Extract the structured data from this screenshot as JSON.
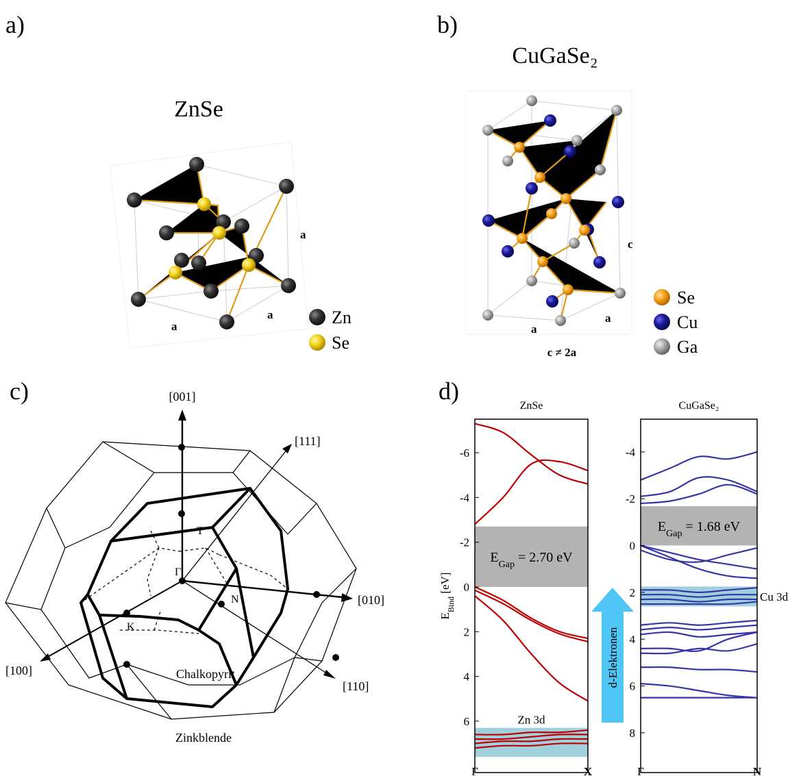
{
  "panels": {
    "a": {
      "label": "a)",
      "title": "ZnSe",
      "lattice_labels": [
        "a",
        "a",
        "a"
      ],
      "legend": [
        "Zn",
        "Se"
      ]
    },
    "b": {
      "label": "b)",
      "title": "CuGaSe₂",
      "lattice_labels": [
        "c",
        "a",
        "a"
      ],
      "relation": "c ≠ 2a",
      "legend": [
        "Se",
        "Cu",
        "Ga"
      ]
    },
    "c": {
      "label": "c)",
      "directions": [
        "[001]",
        "[111]",
        "[010]",
        "[110]",
        "[100]"
      ],
      "points": [
        "T",
        "Γ",
        "N",
        "K"
      ],
      "zones": [
        "Chalkopyrit",
        "Zinkblende"
      ]
    },
    "d": {
      "label": "d)",
      "arrow": "d-Elektronen"
    }
  },
  "chart_data": [
    {
      "type": "line",
      "title": "ZnSe",
      "ylabel": {
        "main": "E",
        "sub": "Bind",
        "rest": " [eV]"
      },
      "categories": [
        "Γ",
        null,
        null,
        null,
        "X"
      ],
      "ylim": [
        8.3,
        -7.5
      ],
      "yticks": [
        -6,
        -4,
        -2,
        0,
        2,
        4,
        6
      ],
      "color": "#c00000",
      "regions": [
        {
          "from": -2.7,
          "to": 0,
          "color": "#b3b3b3",
          "label": {
            "main": "E",
            "sub": "Gap",
            "rest": " = 2.70 eV"
          }
        },
        {
          "from": 6.3,
          "to": 7.6,
          "color": "#9fd0dc",
          "label": "Zn 3d"
        }
      ],
      "series": [
        {
          "values": [
            -7.3,
            -6.9,
            -5.9,
            -5.0,
            -4.6
          ]
        },
        {
          "values": [
            -2.8,
            -4.0,
            -5.5,
            -5.6,
            -5.2
          ]
        },
        {
          "values": [
            0.0,
            0.6,
            1.4,
            2.0,
            2.3
          ]
        },
        {
          "values": [
            0.15,
            0.75,
            1.5,
            2.1,
            2.45
          ]
        },
        {
          "values": [
            0.4,
            1.5,
            3.0,
            4.3,
            5.1
          ]
        },
        {
          "values": [
            6.6,
            6.6,
            6.5,
            6.5,
            6.4
          ]
        },
        {
          "values": [
            6.8,
            6.8,
            6.7,
            6.6,
            6.6
          ]
        },
        {
          "values": [
            7.0,
            6.9,
            6.9,
            6.8,
            6.8
          ]
        },
        {
          "values": [
            7.2,
            7.1,
            7.1,
            7.0,
            7.0
          ]
        }
      ]
    },
    {
      "type": "line",
      "title": "CuGaSe₂",
      "categories": [
        "Γ",
        null,
        null,
        null,
        "N"
      ],
      "ylim": [
        9.7,
        -5.4
      ],
      "yticks": [
        -4,
        -2,
        0,
        2,
        4,
        6,
        8
      ],
      "color": "#3535a8",
      "regions": [
        {
          "from": -1.68,
          "to": 0,
          "color": "#b3b3b3",
          "label": {
            "main": "E",
            "sub": "Gap",
            "rest": " = 1.68 eV"
          }
        },
        {
          "from": 1.75,
          "to": 2.6,
          "color": "#9fd0dc",
          "label": "Cu 3d"
        }
      ],
      "series": [
        {
          "values": [
            -2.8,
            -3.3,
            -3.8,
            -3.7,
            -4.0
          ]
        },
        {
          "values": [
            -2.1,
            -2.3,
            -2.9,
            -2.8,
            -2.3
          ]
        },
        {
          "values": [
            -1.8,
            -1.9,
            -2.2,
            -2.6,
            -2.2
          ]
        },
        {
          "values": [
            0.0,
            0.5,
            1.0,
            1.3,
            1.4
          ]
        },
        {
          "values": [
            0.0,
            0.3,
            0.6,
            0.8,
            1.0
          ]
        },
        {
          "values": [
            0.2,
            0.6,
            0.7,
            0.4,
            0.1
          ]
        },
        {
          "values": [
            1.9,
            1.9,
            2.0,
            1.9,
            1.8
          ]
        },
        {
          "values": [
            2.1,
            2.1,
            2.2,
            2.1,
            2.1
          ]
        },
        {
          "values": [
            2.3,
            2.3,
            2.4,
            2.3,
            2.3
          ]
        },
        {
          "values": [
            2.5,
            2.5,
            2.5,
            2.5,
            2.4
          ]
        },
        {
          "values": [
            3.4,
            3.3,
            3.4,
            3.3,
            3.2
          ]
        },
        {
          "values": [
            3.6,
            3.5,
            3.6,
            3.5,
            3.4
          ]
        },
        {
          "values": [
            3.8,
            3.7,
            3.9,
            3.8,
            3.7
          ]
        },
        {
          "values": [
            4.4,
            4.4,
            4.5,
            4.0,
            3.7
          ]
        },
        {
          "values": [
            4.6,
            4.6,
            4.4,
            4.5,
            4.2
          ]
        },
        {
          "values": [
            5.2,
            5.2,
            5.3,
            5.3,
            5.4
          ]
        },
        {
          "values": [
            5.9,
            6.0,
            6.2,
            6.4,
            6.5
          ]
        },
        {
          "values": [
            6.5,
            6.5,
            6.5,
            6.5,
            6.5
          ]
        }
      ]
    }
  ]
}
